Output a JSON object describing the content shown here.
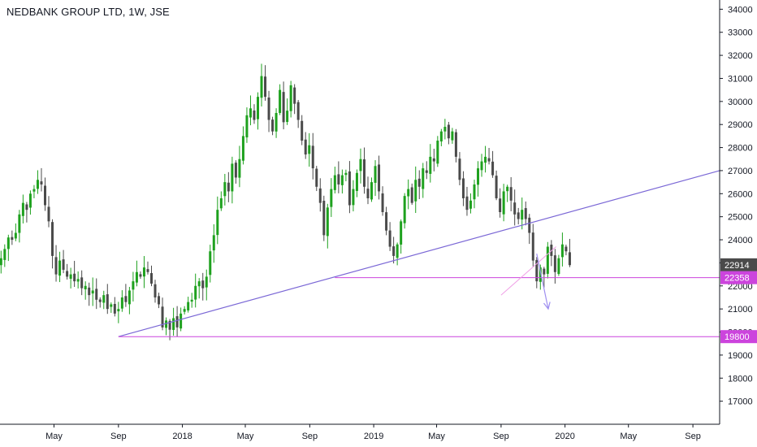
{
  "chart_data": {
    "type": "candlestick",
    "title": "NEDBANK GROUP LTD, 1W, JSE",
    "colors": {
      "up": "#26a69a",
      "upFill": "#1ea11e",
      "down": "#4a4a4a",
      "trendline": "#7b68d6",
      "hline": "#cc44dd",
      "lastPrice": "#4a4a4a",
      "arrow": "#9f8ff0",
      "channel": "#f0a0e6"
    },
    "y_ticks": [
      17000,
      18000,
      19000,
      20000,
      21000,
      22000,
      23000,
      24000,
      25000,
      26000,
      27000,
      28000,
      29000,
      30000,
      31000,
      32000,
      33000,
      34000
    ],
    "x_ticks": [
      {
        "label": "May",
        "date": "2017-05-01"
      },
      {
        "label": "Sep",
        "date": "2017-09-01"
      },
      {
        "label": "2018",
        "date": "2018-01-01"
      },
      {
        "label": "May",
        "date": "2018-05-01"
      },
      {
        "label": "Sep",
        "date": "2018-09-01"
      },
      {
        "label": "2019",
        "date": "2019-01-01"
      },
      {
        "label": "May",
        "date": "2019-05-01"
      },
      {
        "label": "Sep",
        "date": "2019-09-01"
      },
      {
        "label": "2020",
        "date": "2020-01-01"
      },
      {
        "label": "May",
        "date": "2020-05-01"
      },
      {
        "label": "Sep",
        "date": "2020-09-01"
      }
    ],
    "price_labels": [
      {
        "value": 22914,
        "label": "22914",
        "kind": "last"
      },
      {
        "value": 22358,
        "label": "22358",
        "kind": "level"
      },
      {
        "value": 19800,
        "label": "19800",
        "kind": "level"
      }
    ],
    "x_range": [
      "2017-01-18",
      "2020-10-22"
    ],
    "ylim": [
      16000,
      34400
    ],
    "trendline": {
      "from": {
        "date": "2017-09-01",
        "value": 19800
      },
      "to": {
        "date": "2020-10-22",
        "value": 27000
      }
    },
    "horizontal_lines": [
      {
        "from_date": "2018-10-19",
        "value": 22358
      },
      {
        "from_date": "2017-09-01",
        "value": 19800
      }
    ],
    "channel_line": {
      "from": {
        "date": "2019-09-01",
        "value": 21600
      },
      "to": {
        "date": "2019-12-15",
        "value": 23700
      }
    },
    "projection_arrow": {
      "from": {
        "date": "2019-11-08",
        "value": 23400
      },
      "to": {
        "date": "2019-11-30",
        "value": 21000
      }
    },
    "weekly_closes": [
      23200,
      23600,
      24100,
      24000,
      24300,
      25100,
      25600,
      25300,
      26000,
      26200,
      26600,
      26400,
      25500,
      24800,
      23300,
      22500,
      23100,
      22700,
      22400,
      22500,
      22200,
      22300,
      21900,
      22000,
      21600,
      21800,
      21400,
      21300,
      21600,
      21000,
      21200,
      20800,
      21000,
      21500,
      21300,
      21800,
      22200,
      22600,
      22400,
      22800,
      22600,
      22100,
      21500,
      21200,
      20200,
      20500,
      20100,
      20600,
      20200,
      20800,
      21000,
      21300,
      21400,
      22000,
      22200,
      21900,
      22400,
      23500,
      24200,
      25300,
      25800,
      26500,
      26100,
      27300,
      26700,
      27500,
      28500,
      29400,
      29700,
      29200,
      30200,
      31100,
      30200,
      29200,
      28700,
      29500,
      30500,
      29100,
      29600,
      30700,
      29900,
      29200,
      28300,
      27700,
      28100,
      27100,
      26300,
      25600,
      24200,
      25400,
      26200,
      26800,
      26400,
      26800,
      26900,
      25500,
      26200,
      26900,
      27500,
      26300,
      25800,
      26500,
      27200,
      26100,
      25200,
      24400,
      23700,
      23300,
      23800,
      24800,
      25900,
      26200,
      25600,
      26600,
      26300,
      27100,
      26900,
      27600,
      27400,
      28300,
      28700,
      28900,
      28400,
      28700,
      27600,
      26600,
      25800,
      25300,
      25700,
      26400,
      27100,
      27400,
      27600,
      27400,
      26800,
      25800,
      25200,
      26100,
      26300,
      25700,
      25100,
      24900,
      25300,
      24900,
      24300,
      23100,
      22200,
      22800,
      22500,
      23700,
      23300,
      22600,
      23200,
      23800,
      23500,
      22900
    ]
  }
}
